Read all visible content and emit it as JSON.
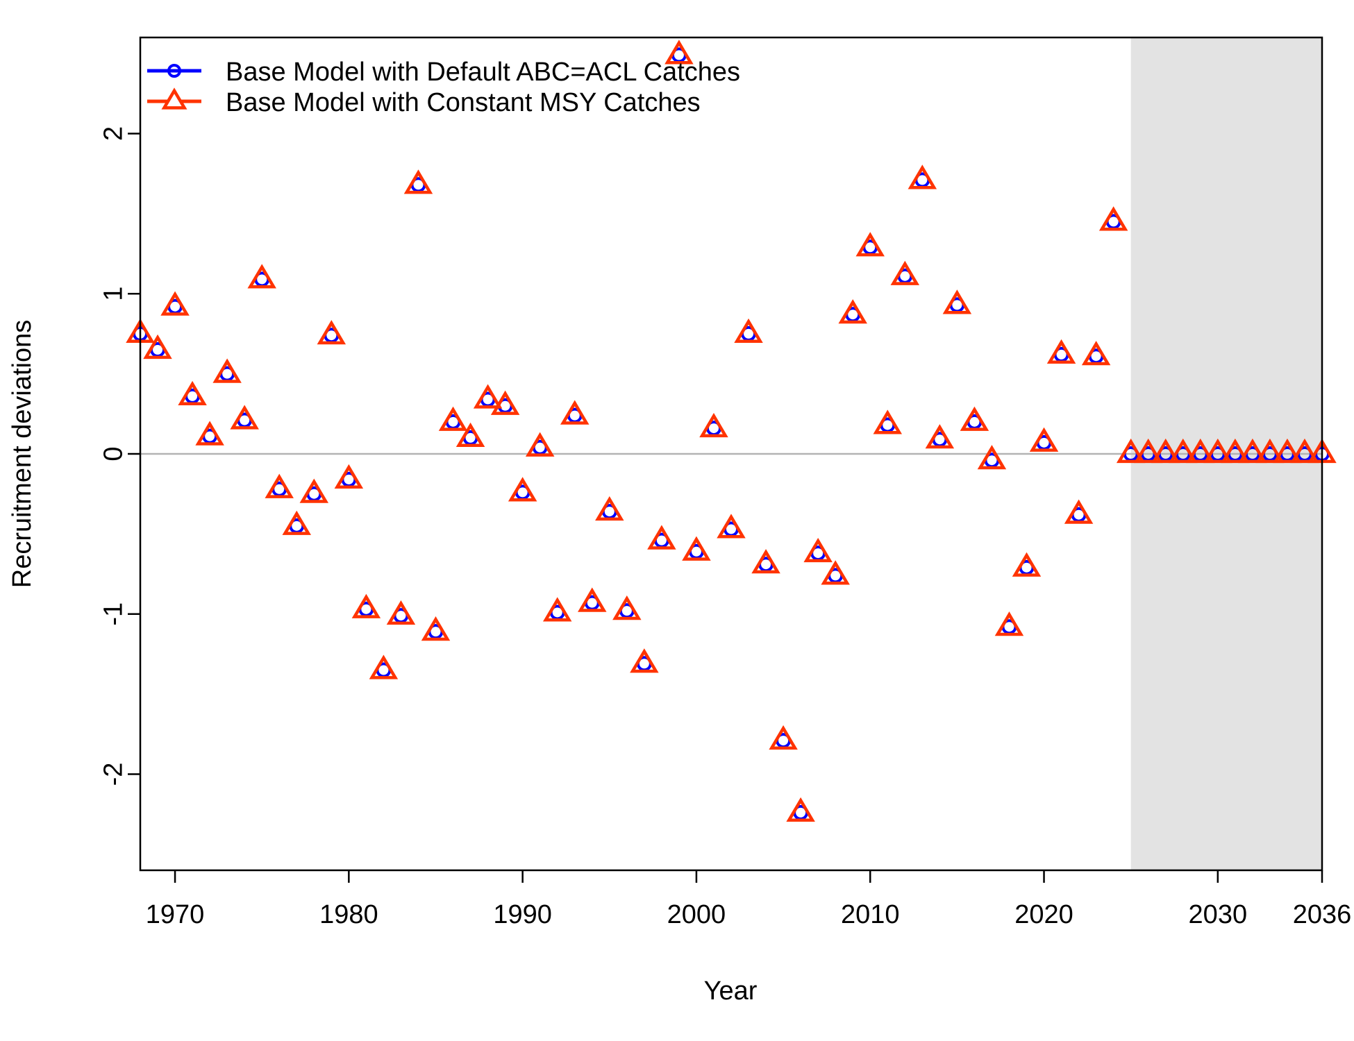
{
  "chart_data": {
    "type": "scatter",
    "title": "",
    "xlabel": "Year",
    "ylabel": "Recruitment deviations",
    "xlim": [
      1968,
      2036
    ],
    "ylim": [
      -2.6,
      2.6
    ],
    "x_ticks": [
      1970,
      1980,
      1990,
      2000,
      2010,
      2020,
      2030,
      2036
    ],
    "y_ticks": [
      -2,
      -1,
      0,
      1,
      2
    ],
    "x_tick_labels": [
      "1970",
      "1980",
      "1990",
      "2000",
      "2010",
      "2020",
      "2030",
      "2036"
    ],
    "y_tick_labels": [
      "-2",
      "-1",
      "0",
      "1",
      "2"
    ],
    "reference_line_y": 0,
    "forecast_shading_start": 2025,
    "legend_position": "top-left",
    "x": [
      1968,
      1969,
      1970,
      1971,
      1972,
      1973,
      1974,
      1975,
      1976,
      1977,
      1978,
      1979,
      1980,
      1981,
      1982,
      1983,
      1984,
      1985,
      1986,
      1987,
      1988,
      1989,
      1990,
      1991,
      1992,
      1993,
      1994,
      1995,
      1996,
      1997,
      1998,
      1999,
      2000,
      2001,
      2002,
      2003,
      2004,
      2005,
      2006,
      2007,
      2008,
      2009,
      2010,
      2011,
      2012,
      2013,
      2014,
      2015,
      2016,
      2017,
      2018,
      2019,
      2020,
      2021,
      2022,
      2023,
      2024,
      2025,
      2026,
      2027,
      2028,
      2029,
      2030,
      2031,
      2032,
      2033,
      2034,
      2035,
      2036
    ],
    "series": [
      {
        "name": "Base Model with Default ABC=ACL Catches",
        "color": "#0000FF",
        "marker": "circle",
        "values": [
          0.75,
          0.65,
          0.92,
          0.36,
          0.11,
          0.5,
          0.21,
          1.09,
          -0.22,
          -0.45,
          -0.25,
          0.74,
          -0.16,
          -0.97,
          -1.35,
          -1.01,
          1.68,
          -1.11,
          0.2,
          0.1,
          0.34,
          0.3,
          -0.24,
          0.04,
          -0.99,
          0.24,
          -0.93,
          -0.36,
          -0.98,
          -1.31,
          -0.54,
          2.49,
          -0.61,
          0.16,
          -0.47,
          0.75,
          -0.69,
          -1.79,
          -2.24,
          -0.62,
          -0.76,
          0.87,
          1.29,
          0.18,
          1.11,
          1.71,
          0.09,
          0.93,
          0.2,
          -0.04,
          -1.08,
          -0.71,
          0.07,
          0.62,
          -0.38,
          0.61,
          1.45,
          0,
          0,
          0,
          0,
          0,
          0,
          0,
          0,
          0,
          0,
          0,
          0
        ]
      },
      {
        "name": "Base Model with Constant MSY Catches",
        "color": "#FF3300",
        "marker": "triangle",
        "values": [
          0.75,
          0.65,
          0.92,
          0.36,
          0.11,
          0.5,
          0.21,
          1.09,
          -0.22,
          -0.45,
          -0.25,
          0.74,
          -0.16,
          -0.97,
          -1.35,
          -1.01,
          1.68,
          -1.11,
          0.2,
          0.1,
          0.34,
          0.3,
          -0.24,
          0.04,
          -0.99,
          0.24,
          -0.93,
          -0.36,
          -0.98,
          -1.31,
          -0.54,
          2.49,
          -0.61,
          0.16,
          -0.47,
          0.75,
          -0.69,
          -1.79,
          -2.24,
          -0.62,
          -0.76,
          0.87,
          1.29,
          0.18,
          1.11,
          1.71,
          0.09,
          0.93,
          0.2,
          -0.04,
          -1.08,
          -0.71,
          0.07,
          0.62,
          -0.38,
          0.61,
          1.45,
          0,
          0,
          0,
          0,
          0,
          0,
          0,
          0,
          0,
          0,
          0,
          0
        ]
      }
    ]
  }
}
